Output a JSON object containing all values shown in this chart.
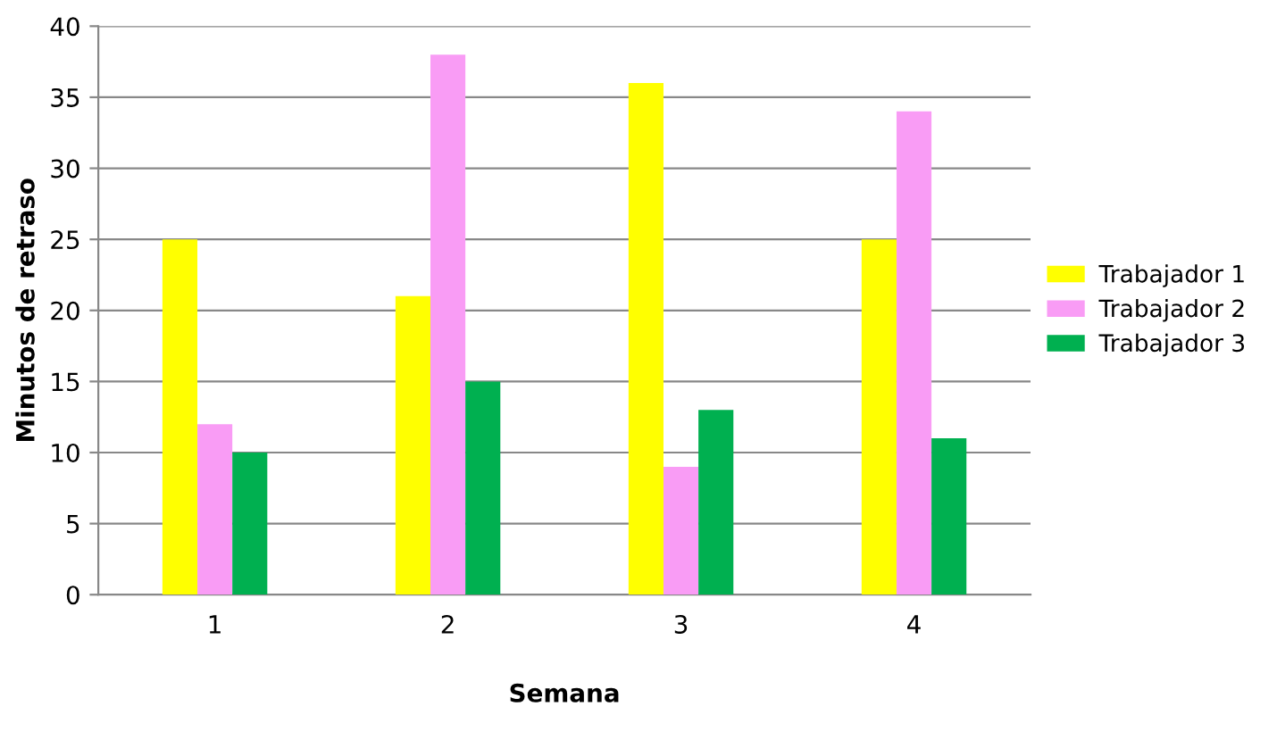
{
  "chart_data": {
    "type": "bar",
    "xlabel": "Semana",
    "ylabel": "Minutos de retraso",
    "categories": [
      "1",
      "2",
      "3",
      "4"
    ],
    "series": [
      {
        "name": "Trabajador 1",
        "color": "#ffff00",
        "values": [
          25,
          21,
          36,
          25
        ]
      },
      {
        "name": "Trabajador 2",
        "color": "#f99cf5",
        "values": [
          12,
          38,
          9,
          34
        ]
      },
      {
        "name": "Trabajador 3",
        "color": "#00b050",
        "values": [
          10,
          15,
          13,
          11
        ]
      }
    ],
    "ylim": [
      0,
      40
    ],
    "yticks": [
      0,
      5,
      10,
      15,
      20,
      25,
      30,
      35,
      40
    ],
    "grid": "y",
    "legend": "right"
  }
}
